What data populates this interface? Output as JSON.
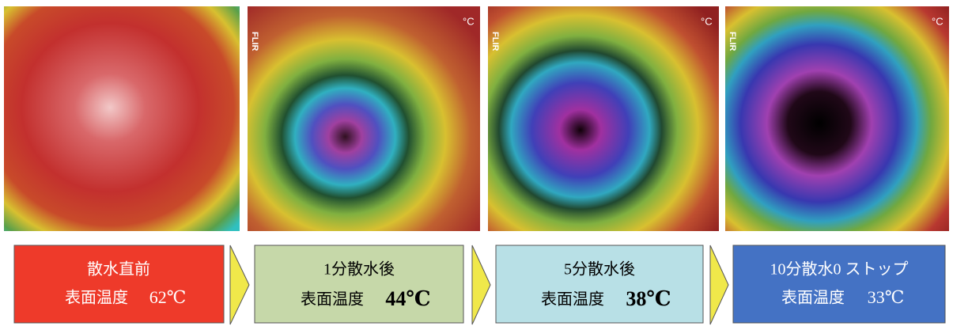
{
  "images": [
    {
      "logo": null,
      "unit": null
    },
    {
      "logo": "FLIR",
      "unit": "°C"
    },
    {
      "logo": "FLIR",
      "unit": "°C"
    },
    {
      "logo": "FLIR",
      "unit": "°C"
    }
  ],
  "panels": [
    {
      "title": "散水直前",
      "label": "表面温度",
      "temperature": "62℃"
    },
    {
      "title": "1分散水後",
      "label": "表面温度",
      "temperature": "44℃"
    },
    {
      "title": "5分散水後",
      "label": "表面温度",
      "temperature": "38℃"
    },
    {
      "title": "10分散水0 ストップ",
      "label": "表面温度",
      "temperature": "33℃"
    }
  ]
}
